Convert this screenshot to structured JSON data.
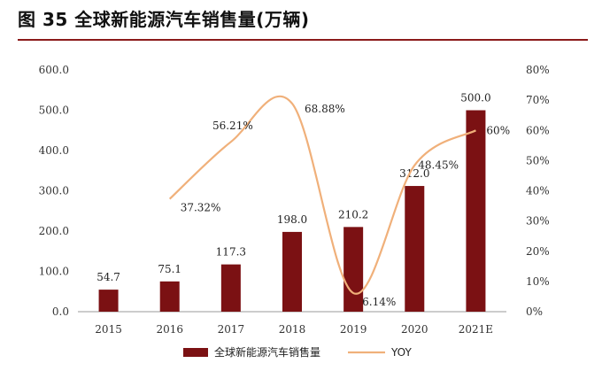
{
  "title": "图 35 全球新能源汽车销售量(万辆)",
  "chart_data": {
    "type": "bar",
    "categories": [
      "2015",
      "2016",
      "2017",
      "2018",
      "2019",
      "2020",
      "2021E"
    ],
    "series": [
      {
        "name": "全球新能源汽车销售量",
        "type": "bar",
        "axis": "left",
        "color": "#7b1113",
        "values": [
          54.7,
          75.1,
          117.3,
          198.0,
          210.2,
          312.0,
          500.0
        ],
        "labels": [
          "54.7",
          "75.1",
          "117.3",
          "198.0",
          "210.2",
          "312.0",
          "500.0"
        ]
      },
      {
        "name": "YOY",
        "type": "line",
        "axis": "right",
        "color": "#f0b07a",
        "values": [
          null,
          37.32,
          56.21,
          68.88,
          6.14,
          48.45,
          60
        ],
        "labels": [
          "",
          "37.32%",
          "56.21%",
          "68.88%",
          "6.14%",
          "48.45%",
          "60%"
        ]
      }
    ],
    "left_axis": {
      "ylim": [
        0,
        600
      ],
      "ticks": [
        "0.0",
        "100.0",
        "200.0",
        "300.0",
        "400.0",
        "500.0",
        "600.0"
      ]
    },
    "right_axis": {
      "ylim": [
        0,
        80
      ],
      "ticks": [
        "0%",
        "10%",
        "20%",
        "30%",
        "40%",
        "50%",
        "60%",
        "70%",
        "80%"
      ]
    },
    "legend_position": "bottom-center",
    "grid": false
  }
}
